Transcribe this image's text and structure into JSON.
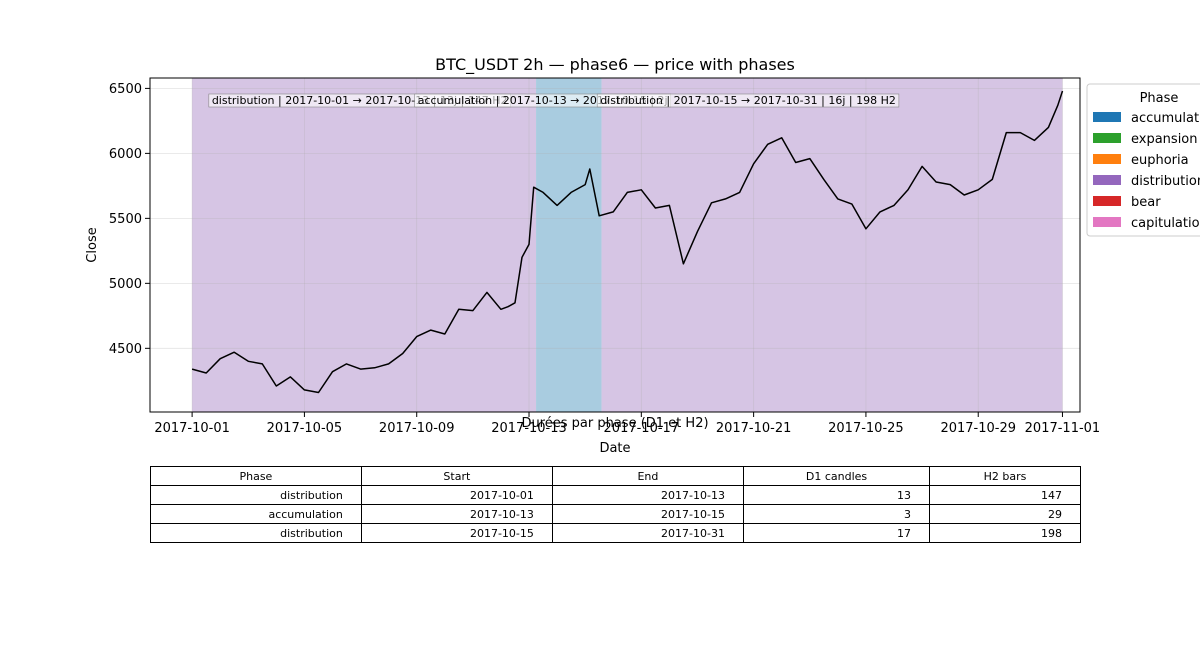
{
  "chart_data": {
    "type": "line",
    "title": "BTC_USDT 2h — phase6 — price with phases",
    "xlabel": "Date",
    "ylabel": "Close",
    "x_range": [
      "2017-09-29T12:00",
      "2017-11-01T15:00"
    ],
    "ylim": [
      4010,
      6580
    ],
    "x_ticks": [
      "2017-10-01",
      "2017-10-05",
      "2017-10-09",
      "2017-10-13",
      "2017-10-17",
      "2017-10-21",
      "2017-10-25",
      "2017-10-29",
      "2017-11-01"
    ],
    "y_ticks": [
      4500,
      5000,
      5500,
      6000,
      6500
    ],
    "grid": true,
    "legend_position": "right",
    "legend": {
      "title": "Phase",
      "entries": [
        {
          "label": "accumulation",
          "color": "#1f77b4"
        },
        {
          "label": "expansion",
          "color": "#2ca02c"
        },
        {
          "label": "euphoria",
          "color": "#ff7f0e"
        },
        {
          "label": "distribution",
          "color": "#9467bd"
        },
        {
          "label": "bear",
          "color": "#d62728"
        },
        {
          "label": "capitulation",
          "color": "#e377c2"
        }
      ]
    },
    "phase_bands": [
      {
        "phase": "distribution",
        "start": "2017-10-01",
        "end": "2017-10-13T06:00",
        "color": "#d6c5e4"
      },
      {
        "phase": "accumulation",
        "start": "2017-10-13T06:00",
        "end": "2017-10-15T14:00",
        "color": "#a9cce0"
      },
      {
        "phase": "distribution",
        "start": "2017-10-15T14:00",
        "end": "2017-11-01",
        "color": "#d6c5e4"
      }
    ],
    "annotations": [
      {
        "text": "distribution | 2017-10-01 → 2017-10-13 | 13j | 147 H2",
        "at": "2017-10-01T16:00"
      },
      {
        "text": "accumulation | 2017-10-13 → 2017-10-15 | 2j",
        "at": "2017-10-09T00:00"
      },
      {
        "text": "distribution | 2017-10-15 → 2017-10-31 | 16j | 198 H2",
        "at": "2017-10-15T12:00"
      }
    ],
    "series": [
      {
        "line_color": "#000000",
        "x": [
          "2017-10-01",
          "2017-10-01T12:00",
          "2017-10-02",
          "2017-10-02T12:00",
          "2017-10-03",
          "2017-10-03T12:00",
          "2017-10-04",
          "2017-10-04T12:00",
          "2017-10-05",
          "2017-10-05T12:00",
          "2017-10-06",
          "2017-10-06T12:00",
          "2017-10-07",
          "2017-10-07T12:00",
          "2017-10-08",
          "2017-10-08T12:00",
          "2017-10-09",
          "2017-10-09T12:00",
          "2017-10-10",
          "2017-10-10T12:00",
          "2017-10-11",
          "2017-10-11T12:00",
          "2017-10-12",
          "2017-10-12T06:00",
          "2017-10-12T12:00",
          "2017-10-12T18:00",
          "2017-10-13",
          "2017-10-13T04:00",
          "2017-10-13T12:00",
          "2017-10-14",
          "2017-10-14T12:00",
          "2017-10-15",
          "2017-10-15T04:00",
          "2017-10-15T12:00",
          "2017-10-16",
          "2017-10-16T12:00",
          "2017-10-17",
          "2017-10-17T12:00",
          "2017-10-18",
          "2017-10-18T12:00",
          "2017-10-19",
          "2017-10-19T12:00",
          "2017-10-20",
          "2017-10-20T12:00",
          "2017-10-21",
          "2017-10-21T12:00",
          "2017-10-22",
          "2017-10-22T12:00",
          "2017-10-23",
          "2017-10-23T12:00",
          "2017-10-24",
          "2017-10-24T12:00",
          "2017-10-25",
          "2017-10-25T12:00",
          "2017-10-26",
          "2017-10-26T12:00",
          "2017-10-27",
          "2017-10-27T12:00",
          "2017-10-28",
          "2017-10-28T12:00",
          "2017-10-29",
          "2017-10-29T12:00",
          "2017-10-30",
          "2017-10-30T12:00",
          "2017-10-31",
          "2017-10-31T12:00",
          "2017-10-31T20:00",
          "2017-11-01"
        ],
        "values": [
          4340,
          4310,
          4420,
          4470,
          4400,
          4380,
          4210,
          4280,
          4180,
          4160,
          4320,
          4380,
          4340,
          4350,
          4380,
          4460,
          4590,
          4640,
          4610,
          4800,
          4790,
          4930,
          4800,
          4820,
          4850,
          5200,
          5300,
          5740,
          5700,
          5600,
          5700,
          5760,
          5880,
          5520,
          5550,
          5700,
          5720,
          5580,
          5600,
          5150,
          5400,
          5620,
          5650,
          5700,
          5920,
          6070,
          6120,
          5930,
          5960,
          5800,
          5650,
          5610,
          5420,
          5550,
          5600,
          5720,
          5900,
          5780,
          5760,
          5680,
          5720,
          5800,
          6160,
          6160,
          6100,
          6200,
          6370,
          6480
        ]
      }
    ]
  },
  "table": {
    "title": "Durées par phase (D1 et H2)",
    "headers": [
      "Phase",
      "Start",
      "End",
      "D1 candles",
      "H2 bars"
    ],
    "rows": [
      [
        "distribution",
        "2017-10-01",
        "2017-10-13",
        "13",
        "147"
      ],
      [
        "accumulation",
        "2017-10-13",
        "2017-10-15",
        "3",
        "29"
      ],
      [
        "distribution",
        "2017-10-15",
        "2017-10-31",
        "17",
        "198"
      ]
    ]
  }
}
